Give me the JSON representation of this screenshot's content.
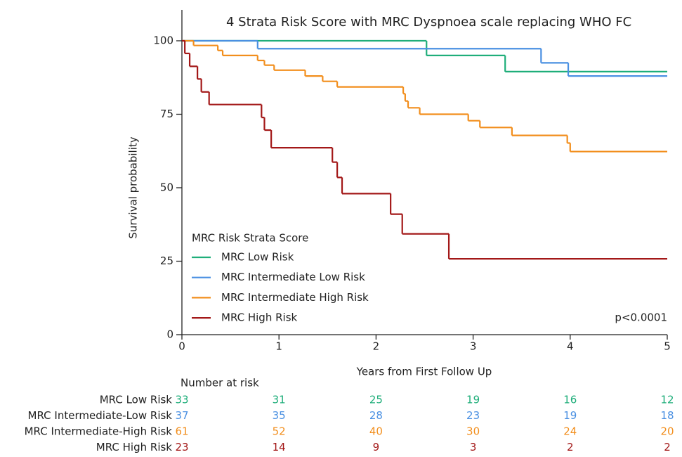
{
  "chart_data": {
    "type": "step",
    "title": "4 Strata Risk Score with MRC Dyspnoea scale replacing WHO FC",
    "x_label": "Years from First Follow Up",
    "y_label": "Survival probability",
    "xlim": [
      0,
      5
    ],
    "xticks": [
      0,
      1,
      2,
      3,
      4,
      5
    ],
    "ylim": [
      0,
      100
    ],
    "yticks": [
      0,
      25,
      50,
      75,
      100
    ],
    "grid": false,
    "legend_title": "MRC Risk Strata Score",
    "legend_position": "lower-left",
    "annotation": "p<0.0001",
    "series": [
      {
        "name": "MRC Low Risk",
        "color": "#1fae7a",
        "x": [
          0,
          2.52,
          3.33,
          5
        ],
        "values": [
          100,
          95,
          89.5,
          89.5
        ]
      },
      {
        "name": "MRC Intermediate Low Risk",
        "color": "#4a90e2",
        "x": [
          0,
          0.78,
          3.7,
          3.98,
          5
        ],
        "values": [
          100,
          97.3,
          92.5,
          88,
          88
        ]
      },
      {
        "name": "MRC Intermediate High Risk",
        "color": "#f28e1c",
        "x": [
          0,
          0.12,
          0.37,
          0.42,
          0.78,
          0.85,
          0.95,
          1.27,
          1.45,
          1.6,
          2.28,
          2.3,
          2.33,
          2.45,
          2.95,
          3.07,
          3.4,
          3.97,
          4.0,
          5
        ],
        "values": [
          100,
          98.4,
          96.7,
          95,
          93.3,
          91.7,
          90,
          88,
          86.2,
          84.3,
          82,
          79.5,
          77.2,
          75,
          72.8,
          70.5,
          67.8,
          65.2,
          62.3,
          62.3
        ]
      },
      {
        "name": "MRC High Risk",
        "color": "#a31818",
        "x": [
          0,
          0.03,
          0.08,
          0.16,
          0.2,
          0.28,
          0.82,
          0.85,
          0.92,
          1.55,
          1.6,
          1.65,
          2.15,
          2.27,
          2.75,
          5
        ],
        "values": [
          100,
          95.7,
          91.3,
          87,
          82.6,
          78.3,
          73.9,
          69.6,
          63.6,
          58.7,
          53.5,
          48,
          41,
          34.3,
          25.8,
          25.8
        ]
      }
    ],
    "risk_table": {
      "title": "Number at risk",
      "rows": [
        {
          "label": "MRC Low Risk",
          "values": [
            33,
            31,
            25,
            19,
            16,
            12
          ]
        },
        {
          "label": "MRC Intermediate-Low Risk",
          "values": [
            37,
            35,
            28,
            23,
            19,
            18
          ]
        },
        {
          "label": "MRC Intermediate-High Risk",
          "values": [
            61,
            52,
            40,
            30,
            24,
            20
          ]
        },
        {
          "label": "MRC High Risk",
          "values": [
            23,
            14,
            9,
            3,
            2,
            2
          ]
        }
      ]
    }
  }
}
